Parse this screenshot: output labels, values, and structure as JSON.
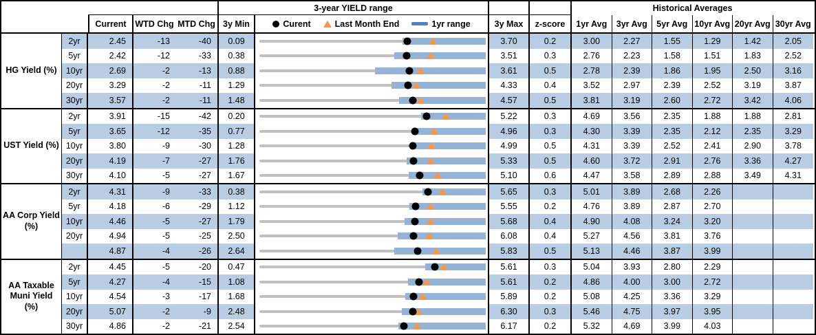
{
  "header": {
    "top": {
      "yield_range_title": "3-year YIELD range",
      "historical_title": "Historical Averages"
    },
    "columns": {
      "current": "Current",
      "wtd": "WTD Chg",
      "mtd": "MTD Chg",
      "min3y": "3y Min",
      "max3y": "3y Max",
      "zscore": "z-score",
      "avgs": [
        "1yr Avg",
        "3yr Avg",
        "5yr Avg",
        "10yr Avg",
        "20yr Avg",
        "30yr Avg"
      ]
    },
    "legend": {
      "current": "Curent",
      "last_month_end": "Last Month End",
      "yr_range": "1yr range"
    }
  },
  "colors": {
    "stripe": "#b8cce4",
    "range_bar_blue": "#95b3d7",
    "track_gray": "#c0c0c0",
    "marker_orange": "#f79646",
    "marker_black": "#000000"
  },
  "chart_data": {
    "type": "bullet-range",
    "title": "3-year YIELD range",
    "x_units": "yield %",
    "notes": "Each row: gray track spans 3y Min to 3y Max; blue bar = 1yr range; black dot = current; orange triangle = last month end. yr1_range values estimated from pixels.",
    "groups": [
      {
        "label": "HG Yield (%)",
        "label_lines": [
          "HG Yield (%)"
        ],
        "rows": [
          {
            "tenor": "2yr",
            "current": 2.45,
            "wtd": -13,
            "mtd": -40,
            "min3y": 0.09,
            "max3y": 3.7,
            "last_month_end": 2.85,
            "yr1_range": [
              2.37,
              3.7
            ],
            "zscore": 0.2,
            "avgs": [
              3.0,
              2.27,
              1.55,
              1.29,
              1.42,
              2.05
            ]
          },
          {
            "tenor": "5yr",
            "current": 2.42,
            "wtd": -12,
            "mtd": -33,
            "min3y": 0.38,
            "max3y": 3.51,
            "last_month_end": 2.75,
            "yr1_range": [
              2.24,
              3.51
            ],
            "zscore": 0.3,
            "avgs": [
              2.76,
              2.23,
              1.58,
              1.51,
              1.83,
              2.52
            ]
          },
          {
            "tenor": "10yr",
            "current": 2.69,
            "wtd": -2,
            "mtd": -13,
            "min3y": 0.88,
            "max3y": 3.61,
            "last_month_end": 2.82,
            "yr1_range": [
              2.27,
              3.61
            ],
            "zscore": 0.5,
            "avgs": [
              2.78,
              2.39,
              1.86,
              1.95,
              2.5,
              3.16
            ]
          },
          {
            "tenor": "20yr",
            "current": 3.29,
            "wtd": -2,
            "mtd": -11,
            "min3y": 1.29,
            "max3y": 4.33,
            "last_month_end": 3.4,
            "yr1_range": [
              3.06,
              4.33
            ],
            "zscore": 0.4,
            "avgs": [
              3.52,
              2.97,
              2.39,
              2.52,
              3.19,
              3.87
            ]
          },
          {
            "tenor": "30yr",
            "current": 3.57,
            "wtd": -2,
            "mtd": -11,
            "min3y": 1.48,
            "max3y": 4.57,
            "last_month_end": 3.68,
            "yr1_range": [
              3.39,
              4.57
            ],
            "zscore": 0.5,
            "avgs": [
              3.81,
              3.19,
              2.6,
              2.72,
              3.42,
              4.06
            ]
          }
        ]
      },
      {
        "label": "UST Yield (%)",
        "label_lines": [
          "UST Yield (%)"
        ],
        "rows": [
          {
            "tenor": "2yr",
            "current": 3.91,
            "wtd": -15,
            "mtd": -42,
            "min3y": 0.2,
            "max3y": 5.22,
            "last_month_end": 4.33,
            "yr1_range": [
              3.79,
              5.22
            ],
            "zscore": 0.3,
            "avgs": [
              4.69,
              3.56,
              2.35,
              1.88,
              1.88,
              2.81
            ]
          },
          {
            "tenor": "5yr",
            "current": 3.65,
            "wtd": -12,
            "mtd": -35,
            "min3y": 0.77,
            "max3y": 4.96,
            "last_month_end": 4.0,
            "yr1_range": [
              3.62,
              4.96
            ],
            "zscore": 0.3,
            "avgs": [
              4.3,
              3.39,
              2.35,
              2.12,
              2.35,
              3.29
            ]
          },
          {
            "tenor": "10yr",
            "current": 3.8,
            "wtd": -9,
            "mtd": -30,
            "min3y": 1.28,
            "max3y": 4.99,
            "last_month_end": 4.1,
            "yr1_range": [
              3.77,
              4.99
            ],
            "zscore": 0.5,
            "avgs": [
              4.31,
              3.39,
              2.52,
              2.41,
              2.9,
              3.78
            ]
          },
          {
            "tenor": "20yr",
            "current": 4.19,
            "wtd": -7,
            "mtd": -27,
            "min3y": 1.76,
            "max3y": 5.33,
            "last_month_end": 4.46,
            "yr1_range": [
              4.08,
              5.33
            ],
            "zscore": 0.5,
            "avgs": [
              4.6,
              3.72,
              2.91,
              2.76,
              3.36,
              4.27
            ]
          },
          {
            "tenor": "30yr",
            "current": 4.1,
            "wtd": -5,
            "mtd": -27,
            "min3y": 1.67,
            "max3y": 5.1,
            "last_month_end": 4.37,
            "yr1_range": [
              3.93,
              5.1
            ],
            "zscore": 0.6,
            "avgs": [
              4.47,
              3.58,
              2.89,
              2.88,
              3.49,
              4.31
            ]
          }
        ]
      },
      {
        "label": "AA Corp Yield (%)",
        "label_lines": [
          "AA Corp Yield",
          "(%)"
        ],
        "rows": [
          {
            "tenor": "2yr",
            "current": 4.31,
            "wtd": -9,
            "mtd": -33,
            "min3y": 0.38,
            "max3y": 5.65,
            "last_month_end": 4.64,
            "yr1_range": [
              4.17,
              5.65
            ],
            "zscore": 0.3,
            "avgs": [
              5.01,
              3.89,
              2.68,
              2.26,
              null,
              null
            ]
          },
          {
            "tenor": "5yr",
            "current": 4.18,
            "wtd": -6,
            "mtd": -29,
            "min3y": 1.12,
            "max3y": 5.55,
            "last_month_end": 4.47,
            "yr1_range": [
              4.06,
              5.55
            ],
            "zscore": 0.2,
            "avgs": [
              4.76,
              3.89,
              2.87,
              2.7,
              null,
              null
            ]
          },
          {
            "tenor": "10yr",
            "current": 4.46,
            "wtd": -5,
            "mtd": -27,
            "min3y": 1.79,
            "max3y": 5.68,
            "last_month_end": 4.73,
            "yr1_range": [
              4.29,
              5.68
            ],
            "zscore": 0.4,
            "avgs": [
              4.9,
              4.08,
              3.24,
              3.2,
              null,
              null
            ]
          },
          {
            "tenor": "20yr",
            "current": 4.94,
            "wtd": -5,
            "mtd": -25,
            "min3y": 2.5,
            "max3y": 6.08,
            "last_month_end": 5.19,
            "yr1_range": [
              4.69,
              6.08
            ],
            "zscore": 0.4,
            "avgs": [
              5.27,
              4.56,
              3.81,
              3.76,
              null,
              null
            ]
          },
          {
            "tenor": "",
            "current": 4.87,
            "wtd": -4,
            "mtd": -26,
            "min3y": 2.64,
            "max3y": 5.83,
            "last_month_end": 5.13,
            "yr1_range": [
              4.54,
              5.83
            ],
            "zscore": 0.5,
            "avgs": [
              5.13,
              4.46,
              3.87,
              3.99,
              null,
              null
            ]
          }
        ]
      },
      {
        "label": "AA Taxable Muni Yield (%)",
        "label_lines": [
          "AA Taxable",
          "Muni Yield",
          "(%)"
        ],
        "rows": [
          {
            "tenor": "2yr",
            "current": 4.45,
            "wtd": -5,
            "mtd": -20,
            "min3y": 0.47,
            "max3y": 5.61,
            "last_month_end": 4.65,
            "yr1_range": [
              4.24,
              5.61
            ],
            "zscore": 0.3,
            "avgs": [
              5.04,
              3.93,
              2.8,
              2.29,
              null,
              null
            ]
          },
          {
            "tenor": "5yr",
            "current": 4.27,
            "wtd": -4,
            "mtd": -15,
            "min3y": 1.08,
            "max3y": 5.61,
            "last_month_end": 4.42,
            "yr1_range": [
              4.06,
              5.61
            ],
            "zscore": 0.2,
            "avgs": [
              4.86,
              4.0,
              3.0,
              2.72,
              null,
              null
            ]
          },
          {
            "tenor": "10yr",
            "current": 4.54,
            "wtd": -3,
            "mtd": -17,
            "min3y": 1.68,
            "max3y": 5.89,
            "last_month_end": 4.71,
            "yr1_range": [
              4.39,
              5.89
            ],
            "zscore": 0.2,
            "avgs": [
              5.08,
              4.25,
              3.36,
              3.29,
              null,
              null
            ]
          },
          {
            "tenor": "20yr",
            "current": 5.07,
            "wtd": -2,
            "mtd": -9,
            "min3y": 2.48,
            "max3y": 6.3,
            "last_month_end": 5.16,
            "yr1_range": [
              4.88,
              6.3
            ],
            "zscore": 0.3,
            "avgs": [
              5.46,
              4.75,
              3.97,
              3.95,
              null,
              null
            ]
          },
          {
            "tenor": "30yr",
            "current": 4.86,
            "wtd": -2,
            "mtd": -21,
            "min3y": 2.54,
            "max3y": 6.17,
            "last_month_end": 5.07,
            "yr1_range": [
              4.77,
              6.17
            ],
            "zscore": 0.2,
            "avgs": [
              5.32,
              4.69,
              3.99,
              4.03,
              null,
              null
            ]
          }
        ]
      }
    ]
  }
}
